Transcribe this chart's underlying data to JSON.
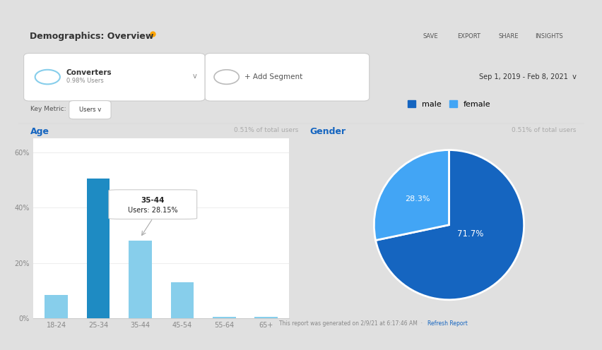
{
  "title": "Demographics: Overview",
  "date_range": "Sep 1, 2019 - Feb 8, 2021",
  "segment_label": "Converters",
  "segment_sub": "0.98% Users",
  "add_segment": "+ Add Segment",
  "key_metric": "Key Metric:",
  "key_metric_value": "Users",
  "save_label": "SAVE",
  "export_label": "EXPORT",
  "share_label": "SHARE",
  "insights_label": "INSIGHTS",
  "age_title": "Age",
  "age_subtitle": "0.51% of total users",
  "age_categories": [
    "18-24",
    "25-34",
    "35-44",
    "45-54",
    "55-64",
    "65+"
  ],
  "age_values": [
    8.5,
    50.5,
    28.15,
    13.0,
    0.5,
    0.5
  ],
  "age_bar_colors": [
    "#87CEEB",
    "#1E8BC3",
    "#87CEEB",
    "#87CEEB",
    "#87CEEB",
    "#87CEEB"
  ],
  "tooltip_label": "35-44",
  "tooltip_value": "Users: 28.15%",
  "gender_title": "Gender",
  "gender_subtitle": "0.51% of total users",
  "gender_labels": [
    "male",
    "female"
  ],
  "gender_values": [
    71.7,
    28.3
  ],
  "gender_colors": [
    "#1565C0",
    "#42A5F5"
  ],
  "gender_pct_labels": [
    "71.7%",
    "28.3%"
  ],
  "footer_text": "This report was generated on 2/9/21 at 6:17:46 AM  ·  ",
  "refresh_link": "Refresh Report",
  "bg_color": "#ffffff",
  "outer_bg": "#e0e0e0",
  "ylim": [
    0,
    65
  ]
}
